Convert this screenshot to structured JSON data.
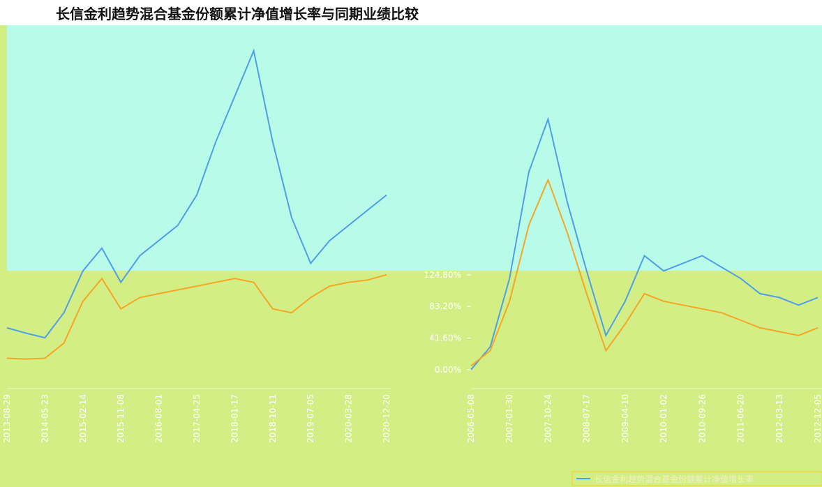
{
  "chart_data": [
    {
      "type": "line",
      "title": "长信金利趋势混合基金份额累计净值增长率与同期业绩比较",
      "categories": [
        "2013-08-29",
        null,
        "2014-05-23",
        null,
        "2015-02-14",
        null,
        "2015-11-08",
        null,
        "2016-08-01",
        null,
        "2017-04-25",
        null,
        "2018-01-17",
        null,
        "2018-10-11",
        null,
        "2019-07-05",
        null,
        "2020-03-28",
        null,
        "2020-12-20"
      ],
      "series": [
        {
          "color": "#4f9ee8",
          "values": [
            55,
            48,
            42,
            75,
            130,
            160,
            115,
            150,
            170,
            190,
            230,
            300,
            360,
            420,
            300,
            200,
            140,
            170,
            190,
            210,
            230
          ]
        },
        {
          "color": "#f5a623",
          "values": [
            15,
            14,
            15,
            35,
            90,
            120,
            80,
            95,
            100,
            105,
            110,
            115,
            120,
            115,
            80,
            75,
            95,
            110,
            115,
            118,
            125
          ]
        }
      ],
      "ylim": [
        -25,
        450
      ]
    },
    {
      "type": "line",
      "categories": [
        "2006-05-08",
        null,
        "2007-01-30",
        null,
        "2007-10-24",
        null,
        "2008-07-17",
        null,
        "2009-04-10",
        null,
        "2010-01-02",
        null,
        "2010-09-26",
        null,
        "2011-06-20",
        null,
        "2012-03-13",
        null,
        "2012-12-05"
      ],
      "series": [
        {
          "name": "长信金利趋势混合基金份额累计净值增长率",
          "color": "#4f9ee8",
          "values": [
            0,
            30,
            120,
            260,
            330,
            220,
            130,
            45,
            90,
            150,
            130,
            140,
            150,
            135,
            120,
            100,
            95,
            85,
            95
          ]
        },
        {
          "color": "#f5a623",
          "values": [
            5,
            25,
            90,
            190,
            250,
            180,
            100,
            25,
            60,
            100,
            90,
            85,
            80,
            75,
            65,
            55,
            50,
            45,
            55
          ]
        }
      ],
      "ylim": [
        -25,
        450
      ],
      "yticks": [
        {
          "value": 0,
          "label": "0.00%"
        },
        {
          "value": 41.6,
          "label": "41.60%"
        },
        {
          "value": 83.2,
          "label": "83.20%"
        },
        {
          "value": 124.8,
          "label": "124.80%"
        }
      ]
    }
  ]
}
